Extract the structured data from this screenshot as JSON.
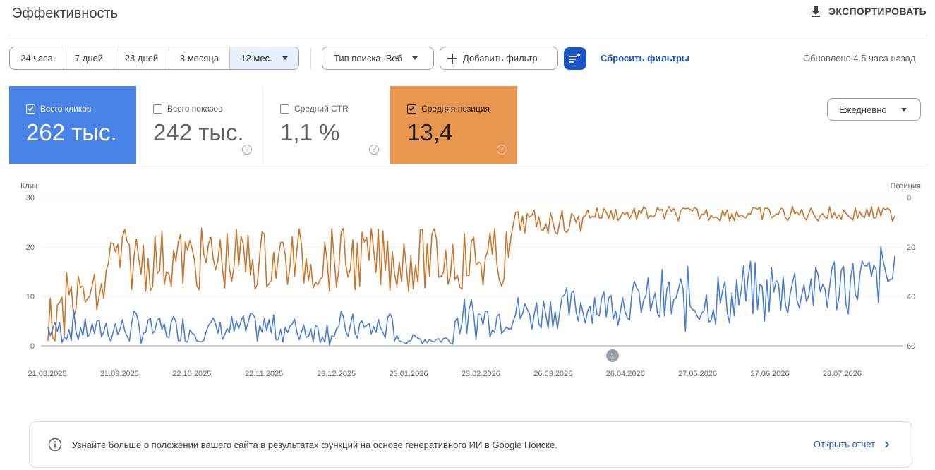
{
  "header": {
    "title": "Эффективность",
    "export_label": "ЭКСПОРТИРОВАТЬ"
  },
  "date_ranges": [
    "24 часа",
    "7 дней",
    "28 дней",
    "3 месяца",
    "12 мес."
  ],
  "selected_range": "12 мес.",
  "filters": {
    "search_type": "Тип поиска: Веб",
    "add_filter": "Добавить фильтр",
    "reset": "Сбросить фильтры",
    "updated": "Обновлено 4.5 часа назад"
  },
  "metrics": [
    {
      "label": "Всего кликов",
      "value": "262 тыс.",
      "checked": true,
      "color": "#4a83e8"
    },
    {
      "label": "Всего показов",
      "value": "242 тыс.",
      "checked": false
    },
    {
      "label": "Средний CTR",
      "value": "1,1 %",
      "checked": false
    },
    {
      "label": "Средняя позиция",
      "value": "13,4",
      "checked": true,
      "color": "#e8964f"
    }
  ],
  "granularity": "Ежедневно",
  "chart_data": {
    "type": "line",
    "y_left_label": "Клик",
    "y_right_label": "Позиция",
    "y_left_ticks": [
      "30",
      "20",
      "10",
      "0"
    ],
    "y_right_ticks": [
      "0",
      "20",
      "40",
      "60"
    ],
    "y_left_range": [
      0,
      30
    ],
    "y_right_range": [
      0,
      60
    ],
    "y_right_inverted": true,
    "x_labels": [
      "21.08.2025",
      "21.09.2025",
      "22.10.2025",
      "22.11.2025",
      "23.12.2025",
      "23.01.2026",
      "23.02.2026",
      "26.03.2026",
      "26.04.2026",
      "27.05.2026",
      "27.06.2026",
      "28.07.2026"
    ],
    "annotation": "1",
    "series_colors": {
      "clicks": "#4a7fd4",
      "position": "#c9762d"
    }
  },
  "banner": {
    "text": "Узнайте больше о положении вашего сайта в результатах функций на основе генеративного ИИ в Google Поиске.",
    "link": "Открыть отчет"
  }
}
